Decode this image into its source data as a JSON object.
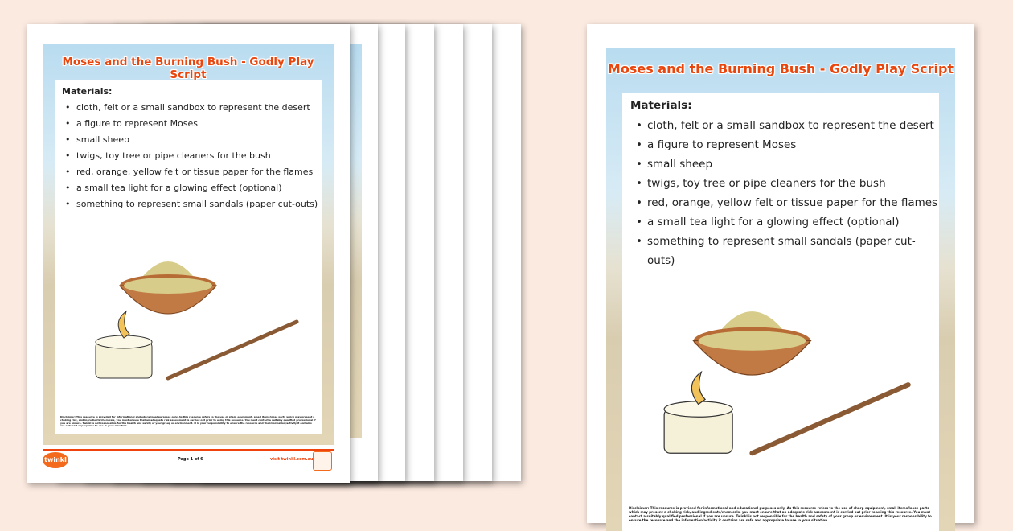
{
  "document": {
    "title": "Moses and the Burning Bush - Godly Play Script",
    "materials_heading": "Materials:",
    "materials": [
      "cloth, felt or a small sandbox to represent the desert",
      "a figure to represent Moses",
      "small sheep",
      "twigs, toy tree or pipe cleaners for the bush",
      "red, orange, yellow felt or tissue paper for the flames",
      "a small tea light for a glowing effect (optional)",
      "something to represent small sandals (paper cut-outs)"
    ],
    "disclaimer": "Disclaimer: This resource is provided for informational and educational purposes only. As this resource refers to the use of sharp equipment, small items/loose parts which may present a choking risk, and ingredients/chemicals, you must ensure that an adequate risk assessment is carried out prior to using this resource. You must contact a suitably qualified professional if you are unsure. Twinkl is not responsible for the health and safety of your group or environment. It is your responsibility to ensure the resource and the information/activity it contains are safe and appropriate to use in your situation.",
    "footer": {
      "logo": "twinkl",
      "page": "Page 1 of 6",
      "url": "visit twinkl.com.au"
    }
  },
  "colors": {
    "title": "#e9460e",
    "background": "#fbeae0",
    "accent": "#f46a1c"
  }
}
